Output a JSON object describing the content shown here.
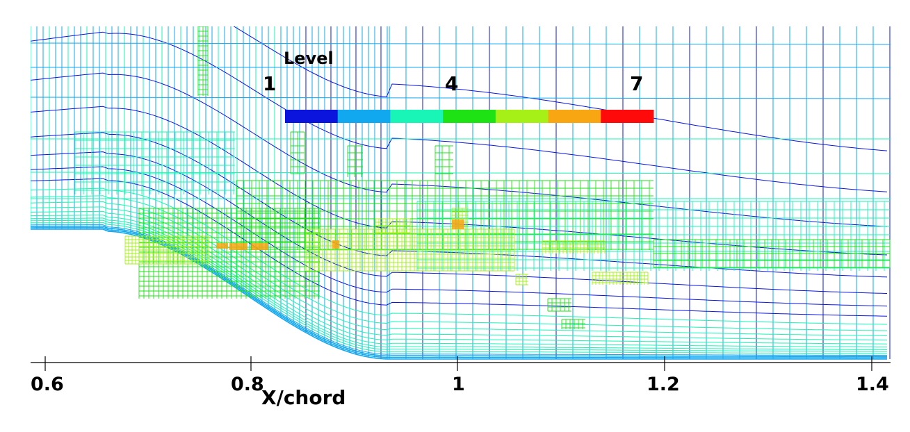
{
  "legend": {
    "title": "Level",
    "tick_labels": [
      "1",
      "4",
      "7"
    ],
    "colors": [
      "#0a14dc",
      "#12a8f0",
      "#18f5b6",
      "#1ee214",
      "#a6f018",
      "#f8a612",
      "#ff0a0a"
    ]
  },
  "axis": {
    "xlabel": "X/chord",
    "tick_labels": [
      "0.6",
      "0.8",
      "1",
      "1.2",
      "1.4"
    ],
    "xlim": [
      0.6,
      1.42
    ]
  },
  "chart_data": {
    "type": "heatmap",
    "title": "",
    "xlabel": "X/chord",
    "ylabel": "",
    "x_ticks": [
      0.6,
      0.8,
      1.0,
      1.2,
      1.4
    ],
    "xlim": [
      0.6,
      1.42
    ],
    "color_levels": [
      1,
      2,
      3,
      4,
      5,
      6,
      7
    ],
    "legend_ticks": [
      1,
      4,
      7
    ],
    "legend_title": "Level",
    "grid": true,
    "legend_placement": "top-center"
  }
}
